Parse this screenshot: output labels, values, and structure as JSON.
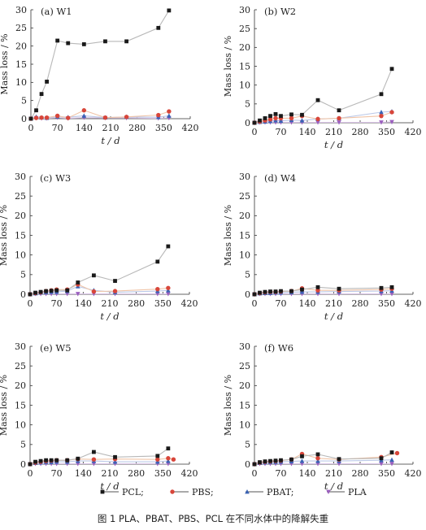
{
  "caption": "图 1   PLA、PBAT、PBS、PCL 在不同水体中的降解失重",
  "legend": [
    {
      "key": "PCL",
      "label": "PCL;",
      "color": "#1a1a1a",
      "marker": "square"
    },
    {
      "key": "PBS",
      "label": "PBS;",
      "color": "#d8463a",
      "marker": "circle"
    },
    {
      "key": "PBAT",
      "label": "PBAT;",
      "color": "#3a63b5",
      "marker": "triangle-up"
    },
    {
      "key": "PLA",
      "label": "PLA",
      "color": "#9b5fbf",
      "marker": "triangle-down"
    }
  ],
  "colors": {
    "PCL_line": "#b8b8b8",
    "PBS_line": "#f0c5a8",
    "PBAT_line": "#bcc9e8",
    "PLA_line": "#d9c3e6"
  },
  "chart_data": [
    {
      "type": "line",
      "title": "(a) W1",
      "xlabel": "t / d",
      "ylabel": "Mass loss / %",
      "xlim": [
        0,
        420
      ],
      "ylim": [
        0,
        30
      ],
      "xticks": [
        0,
        70,
        140,
        210,
        280,
        350,
        420
      ],
      "yticks": [
        0,
        5,
        10,
        15,
        20,
        25,
        30
      ],
      "series": [
        {
          "name": "PCL",
          "x": [
            0,
            14,
            28,
            42,
            70,
            98,
            140,
            196,
            252,
            336,
            364
          ],
          "y": [
            0,
            2.3,
            6.8,
            10.2,
            21.5,
            20.8,
            20.5,
            21.3,
            21.3,
            25,
            29.8
          ]
        },
        {
          "name": "PBS",
          "x": [
            0,
            14,
            28,
            42,
            70,
            98,
            140,
            196,
            252,
            336,
            364
          ],
          "y": [
            0,
            0.2,
            0.3,
            0.3,
            0.8,
            0.2,
            2.3,
            0.3,
            0.5,
            1,
            2
          ]
        },
        {
          "name": "PBAT",
          "x": [
            0,
            14,
            28,
            42,
            70,
            98,
            140,
            196,
            252,
            336,
            364
          ],
          "y": [
            0,
            0.5,
            0.3,
            0.2,
            0.6,
            0.4,
            0.8,
            0.3,
            0.5,
            0.4,
            0.8
          ]
        },
        {
          "name": "PLA",
          "x": [
            0,
            14,
            28,
            42,
            70,
            98,
            140,
            196,
            252,
            336,
            364
          ],
          "y": [
            0,
            0.2,
            0.1,
            0.1,
            0.3,
            0.1,
            0.3,
            0.2,
            0.2,
            0.1,
            0.2
          ]
        }
      ]
    },
    {
      "type": "line",
      "title": "(b) W2",
      "xlabel": "t / d",
      "ylabel": "Mass loss / %",
      "xlim": [
        0,
        420
      ],
      "ylim": [
        0,
        30
      ],
      "xticks": [
        0,
        70,
        140,
        210,
        280,
        350,
        420
      ],
      "yticks": [
        0,
        5,
        10,
        15,
        20,
        25,
        30
      ],
      "series": [
        {
          "name": "PCL",
          "x": [
            0,
            14,
            28,
            42,
            56,
            70,
            98,
            126,
            168,
            224,
            336,
            364
          ],
          "y": [
            0,
            0.6,
            1.2,
            1.8,
            2.3,
            1.8,
            2.2,
            2.1,
            6,
            3.3,
            7.6,
            14.3
          ]
        },
        {
          "name": "PBS",
          "x": [
            0,
            14,
            28,
            42,
            56,
            70,
            98,
            126,
            168,
            224,
            336,
            364
          ],
          "y": [
            0,
            0.3,
            0.6,
            0.9,
            1.2,
            1.2,
            1.2,
            1.8,
            1,
            1.2,
            1.8,
            2.8
          ]
        },
        {
          "name": "PBAT",
          "x": [
            0,
            14,
            28,
            42,
            56,
            70,
            98,
            126,
            168,
            224,
            336,
            364
          ],
          "y": [
            0,
            0.2,
            0.3,
            0.4,
            0.6,
            0.5,
            0.7,
            0.6,
            1,
            1.2,
            2.8,
            3
          ]
        },
        {
          "name": "PLA",
          "x": [
            0,
            14,
            28,
            42,
            56,
            70,
            98,
            126,
            168,
            224,
            336,
            364
          ],
          "y": [
            0,
            0.1,
            0.1,
            0.1,
            0.1,
            0.1,
            0.1,
            0.1,
            0.1,
            0.1,
            0.1,
            0.2
          ]
        }
      ]
    },
    {
      "type": "line",
      "title": "(c) W3",
      "xlabel": "t / d",
      "ylabel": "Mass loss / %",
      "xlim": [
        0,
        420
      ],
      "ylim": [
        0,
        30
      ],
      "xticks": [
        0,
        70,
        140,
        210,
        280,
        350,
        420
      ],
      "yticks": [
        0,
        5,
        10,
        15,
        20,
        25,
        30
      ],
      "series": [
        {
          "name": "PCL",
          "x": [
            0,
            14,
            28,
            42,
            56,
            70,
            98,
            126,
            168,
            224,
            336,
            364
          ],
          "y": [
            0,
            0.4,
            0.6,
            0.8,
            0.9,
            1,
            1,
            3,
            4.8,
            3.4,
            8.3,
            12.2
          ]
        },
        {
          "name": "PBS",
          "x": [
            0,
            14,
            28,
            42,
            56,
            70,
            98,
            126,
            168,
            224,
            336,
            364
          ],
          "y": [
            0,
            0.3,
            0.5,
            0.8,
            1,
            1.2,
            1.2,
            2.5,
            0.7,
            0.8,
            1.3,
            1.6
          ]
        },
        {
          "name": "PBAT",
          "x": [
            0,
            14,
            28,
            42,
            56,
            70,
            98,
            126,
            168,
            224,
            336,
            364
          ],
          "y": [
            0,
            0.2,
            0.4,
            0.5,
            0.6,
            0.6,
            0.8,
            2,
            1,
            0.5,
            0.8,
            1
          ]
        },
        {
          "name": "PLA",
          "x": [
            0,
            14,
            28,
            42,
            56,
            70,
            98,
            126,
            168,
            224,
            336,
            364
          ],
          "y": [
            0,
            0.1,
            0.1,
            0.1,
            0.1,
            0.1,
            0.1,
            0.1,
            0.1,
            0.1,
            0.1,
            0.1
          ]
        }
      ]
    },
    {
      "type": "line",
      "title": "(d) W4",
      "xlabel": "t / d",
      "ylabel": "Mass loss / %",
      "xlim": [
        0,
        420
      ],
      "ylim": [
        0,
        30
      ],
      "xticks": [
        0,
        70,
        140,
        210,
        280,
        350,
        420
      ],
      "yticks": [
        0,
        5,
        10,
        15,
        20,
        25,
        30
      ],
      "series": [
        {
          "name": "PCL",
          "x": [
            0,
            14,
            28,
            42,
            56,
            70,
            98,
            126,
            168,
            224,
            336,
            364
          ],
          "y": [
            0,
            0.4,
            0.6,
            0.7,
            0.7,
            0.8,
            0.8,
            1.2,
            1.8,
            1.4,
            1.6,
            1.8
          ]
        },
        {
          "name": "PBS",
          "x": [
            0,
            14,
            28,
            42,
            56,
            70,
            98,
            126,
            168,
            224,
            336,
            364
          ],
          "y": [
            0,
            0.3,
            0.5,
            0.6,
            0.6,
            0.7,
            0.8,
            1.5,
            1,
            1,
            1.2,
            1.4
          ]
        },
        {
          "name": "PBAT",
          "x": [
            0,
            14,
            28,
            42,
            56,
            70,
            98,
            126,
            168,
            224,
            336,
            364
          ],
          "y": [
            0,
            0.2,
            0.3,
            0.3,
            0.4,
            0.4,
            0.5,
            0.6,
            0.6,
            0.7,
            0.8,
            0.9
          ]
        },
        {
          "name": "PLA",
          "x": [
            0,
            14,
            28,
            42,
            56,
            70,
            98,
            126,
            168,
            224,
            336,
            364
          ],
          "y": [
            0,
            0.1,
            0.1,
            0.1,
            0.1,
            0.1,
            0.1,
            0.1,
            0.1,
            0.1,
            0.1,
            0.1
          ]
        }
      ]
    },
    {
      "type": "line",
      "title": "(e) W5",
      "xlabel": "t / d",
      "ylabel": "Mass loss / %",
      "xlim": [
        0,
        420
      ],
      "ylim": [
        0,
        30
      ],
      "xticks": [
        0,
        70,
        140,
        210,
        280,
        350,
        420
      ],
      "yticks": [
        0,
        5,
        10,
        15,
        20,
        25,
        30
      ],
      "series": [
        {
          "name": "PCL",
          "x": [
            0,
            14,
            28,
            42,
            56,
            70,
            98,
            126,
            168,
            224,
            336,
            364
          ],
          "y": [
            0,
            0.6,
            0.8,
            1,
            1,
            1,
            1,
            1.4,
            3.1,
            1.8,
            2.1,
            4
          ]
        },
        {
          "name": "PBS",
          "x": [
            0,
            14,
            28,
            42,
            56,
            70,
            98,
            126,
            168,
            224,
            336,
            364,
            378
          ],
          "y": [
            0,
            0.4,
            0.6,
            0.8,
            0.9,
            1,
            1,
            1.3,
            1.2,
            1.3,
            1.2,
            1.5,
            1.2
          ]
        },
        {
          "name": "PBAT",
          "x": [
            0,
            14,
            28,
            42,
            56,
            70,
            98,
            126,
            168,
            224,
            336,
            364
          ],
          "y": [
            0,
            0.3,
            0.4,
            0.5,
            0.5,
            0.6,
            0.6,
            0.8,
            0.8,
            0.6,
            0.6,
            0.8
          ]
        },
        {
          "name": "PLA",
          "x": [
            0,
            14,
            28,
            42,
            56,
            70,
            98,
            126,
            168,
            224,
            336,
            364
          ],
          "y": [
            0,
            0.1,
            0.1,
            0.1,
            0.1,
            0.1,
            0.1,
            0.1,
            0.1,
            0.1,
            0.1,
            0.1
          ]
        }
      ]
    },
    {
      "type": "line",
      "title": "(f) W6",
      "xlabel": "t / d",
      "ylabel": "Mass loss / %",
      "xlim": [
        0,
        420
      ],
      "ylim": [
        0,
        30
      ],
      "xticks": [
        0,
        70,
        140,
        210,
        280,
        350,
        420
      ],
      "yticks": [
        0,
        5,
        10,
        15,
        20,
        25,
        30
      ],
      "series": [
        {
          "name": "PCL",
          "x": [
            0,
            14,
            28,
            42,
            56,
            70,
            98,
            126,
            168,
            224,
            336,
            364
          ],
          "y": [
            0,
            0.5,
            0.7,
            0.8,
            0.9,
            1,
            1.2,
            2,
            2.5,
            1.3,
            1.5,
            3
          ]
        },
        {
          "name": "PBS",
          "x": [
            0,
            14,
            28,
            42,
            56,
            70,
            98,
            126,
            168,
            224,
            336,
            378
          ],
          "y": [
            0,
            0.4,
            0.6,
            0.7,
            0.8,
            0.9,
            1.2,
            2.6,
            1.5,
            1.2,
            1.8,
            2.8
          ]
        },
        {
          "name": "PBAT",
          "x": [
            0,
            14,
            28,
            42,
            56,
            70,
            98,
            126,
            168,
            224,
            336,
            364
          ],
          "y": [
            0,
            0.3,
            0.4,
            0.5,
            0.5,
            0.6,
            0.7,
            0.8,
            0.8,
            0.8,
            1,
            1.1
          ]
        },
        {
          "name": "PLA",
          "x": [
            0,
            14,
            28,
            42,
            56,
            70,
            98,
            126,
            168,
            224,
            336,
            364
          ],
          "y": [
            0,
            0.1,
            0.1,
            0.1,
            0.1,
            0.1,
            0.1,
            0.1,
            0.1,
            0.1,
            0.1,
            0.1
          ]
        }
      ]
    }
  ]
}
